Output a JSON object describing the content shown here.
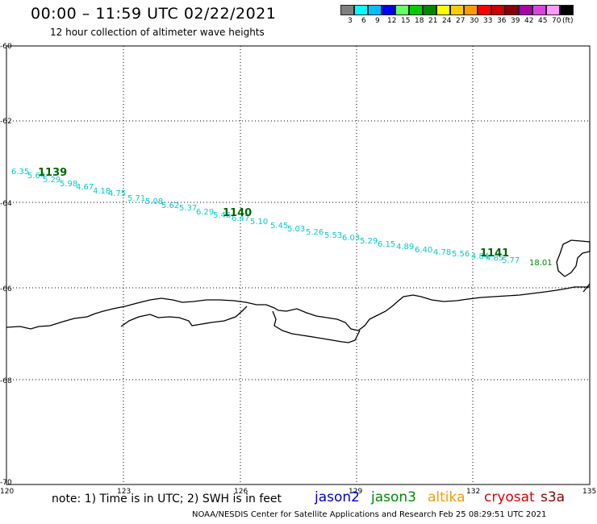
{
  "header": {
    "title": "00:00 – 11:59 UTC 02/22/2021",
    "subtitle": "12 hour collection of altimeter wave heights"
  },
  "colorbar": {
    "unit": "(ft)",
    "colors": [
      "#808080",
      "#00ffff",
      "#00bfff",
      "#0000ff",
      "#66ff66",
      "#00cc00",
      "#008800",
      "#ffff00",
      "#ffcc00",
      "#ff9900",
      "#ff0000",
      "#cc0000",
      "#880000",
      "#aa00aa",
      "#dd44dd",
      "#ff99ff",
      "#000000"
    ],
    "labels": [
      "3",
      "6",
      "9",
      "12",
      "15",
      "18",
      "21",
      "24",
      "27",
      "30",
      "33",
      "36",
      "39",
      "42",
      "45",
      "70"
    ]
  },
  "map": {
    "lon_ticks": [
      "120",
      "123",
      "126",
      "129",
      "132",
      "135"
    ],
    "lat_ticks": [
      "-60",
      "-62",
      "-64",
      "-66",
      "-68",
      "-70"
    ],
    "lon_range": [
      120,
      135
    ],
    "lat_range": [
      -60,
      -70
    ],
    "passes": [
      "1139",
      "1140",
      "1141"
    ],
    "wave_labels": [
      "6.35",
      "5.64",
      "5.29",
      "5.98",
      "4.67",
      "4.18",
      "4.75",
      "5.71",
      "5.08",
      "5.62",
      "5.37",
      "6.29",
      "5.46",
      "6.47",
      "5.10",
      "5.45",
      "5.03",
      "5.26",
      "5.53",
      "6.03",
      "5.29",
      "6.15",
      "4.89",
      "6.40",
      "4.78",
      "5.56",
      "4.84",
      "4.85",
      "5.77",
      "18.01"
    ]
  },
  "footer": {
    "note": "note: 1) Time is in UTC; 2) SWH is in feet",
    "satellites": [
      {
        "name": "jason2",
        "color": "#0000cc"
      },
      {
        "name": "jason3",
        "color": "#008800"
      },
      {
        "name": "altika",
        "color": "#ff9900"
      },
      {
        "name": "cryosat",
        "color": "#dd0000"
      },
      {
        "name": "s3a",
        "color": "#880000"
      }
    ],
    "credit": "NOAA/NESDIS Center for Satellite Applications and Research    Feb 25 08:29:51 UTC 2021"
  }
}
